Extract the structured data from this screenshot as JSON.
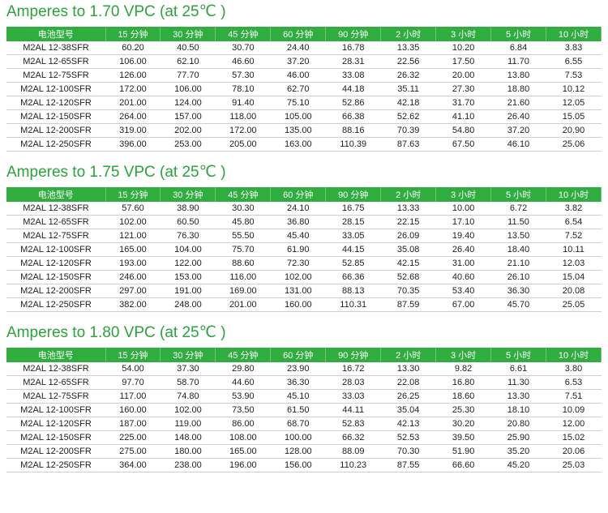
{
  "columns": [
    "电池型号",
    "15 分钟",
    "30 分钟",
    "45 分钟",
    "60 分钟",
    "90 分钟",
    "2 小时",
    "3 小时",
    "5 小时",
    "10 小时"
  ],
  "sections": [
    {
      "title": "Amperes to 1.70 VPC (at 25℃ )",
      "rows": [
        [
          "M2AL 12-38SFR",
          "60.20",
          "40.50",
          "30.70",
          "24.40",
          "16.78",
          "13.35",
          "10.20",
          "6.84",
          "3.83"
        ],
        [
          "M2AL 12-65SFR",
          "106.00",
          "62.10",
          "46.60",
          "37.20",
          "28.31",
          "22.56",
          "17.50",
          "11.70",
          "6.55"
        ],
        [
          "M2AL 12-75SFR",
          "126.00",
          "77.70",
          "57.30",
          "46.00",
          "33.08",
          "26.32",
          "20.00",
          "13.80",
          "7.53"
        ],
        [
          "M2AL 12-100SFR",
          "172.00",
          "106.00",
          "78.10",
          "62.70",
          "44.18",
          "35.11",
          "27.30",
          "18.80",
          "10.12"
        ],
        [
          "M2AL 12-120SFR",
          "201.00",
          "124.00",
          "91.40",
          "75.10",
          "52.86",
          "42.18",
          "31.70",
          "21.60",
          "12.05"
        ],
        [
          "M2AL 12-150SFR",
          "264.00",
          "157.00",
          "118.00",
          "105.00",
          "66.38",
          "52.62",
          "41.10",
          "26.40",
          "15.05"
        ],
        [
          "M2AL 12-200SFR",
          "319.00",
          "202.00",
          "172.00",
          "135.00",
          "88.16",
          "70.39",
          "54.80",
          "37.20",
          "20.90"
        ],
        [
          "M2AL 12-250SFR",
          "396.00",
          "253.00",
          "205.00",
          "163.00",
          "110.39",
          "87.63",
          "67.50",
          "46.10",
          "25.06"
        ]
      ]
    },
    {
      "title": "Amperes to 1.75 VPC (at 25℃ )",
      "rows": [
        [
          "M2AL 12-38SFR",
          "57.60",
          "38.90",
          "30.30",
          "24.10",
          "16.75",
          "13.33",
          "10.00",
          "6.72",
          "3.82"
        ],
        [
          "M2AL 12-65SFR",
          "102.00",
          "60.50",
          "45.80",
          "36.80",
          "28.15",
          "22.15",
          "17.10",
          "11.50",
          "6.54"
        ],
        [
          "M2AL 12-75SFR",
          "121.00",
          "76.30",
          "55.50",
          "45.40",
          "33.05",
          "26.09",
          "19.40",
          "13.50",
          "7.52"
        ],
        [
          "M2AL 12-100SFR",
          "165.00",
          "104.00",
          "75.70",
          "61.90",
          "44.15",
          "35.08",
          "26.40",
          "18.40",
          "10.11"
        ],
        [
          "M2AL 12-120SFR",
          "193.00",
          "122.00",
          "88.60",
          "72.30",
          "52.85",
          "42.15",
          "31.00",
          "21.10",
          "12.03"
        ],
        [
          "M2AL 12-150SFR",
          "246.00",
          "153.00",
          "116.00",
          "102.00",
          "66.36",
          "52.68",
          "40.60",
          "26.10",
          "15.04"
        ],
        [
          "M2AL 12-200SFR",
          "297.00",
          "191.00",
          "169.00",
          "131.00",
          "88.13",
          "70.35",
          "53.40",
          "36.30",
          "20.08"
        ],
        [
          "M2AL 12-250SFR",
          "382.00",
          "248.00",
          "201.00",
          "160.00",
          "110.31",
          "87.59",
          "67.00",
          "45.70",
          "25.05"
        ]
      ]
    },
    {
      "title": "Amperes to 1.80 VPC (at 25℃ )",
      "rows": [
        [
          "M2AL 12-38SFR",
          "54.00",
          "37.30",
          "29.80",
          "23.90",
          "16.72",
          "13.30",
          "9.82",
          "6.61",
          "3.80"
        ],
        [
          "M2AL 12-65SFR",
          "97.70",
          "58.70",
          "44.60",
          "36.30",
          "28.03",
          "22.08",
          "16.80",
          "11.30",
          "6.53"
        ],
        [
          "M2AL 12-75SFR",
          "117.00",
          "74.80",
          "53.90",
          "45.10",
          "33.03",
          "26.25",
          "18.60",
          "13.30",
          "7.51"
        ],
        [
          "M2AL 12-100SFR",
          "160.00",
          "102.00",
          "73.50",
          "61.50",
          "44.11",
          "35.04",
          "25.30",
          "18.10",
          "10.09"
        ],
        [
          "M2AL 12-120SFR",
          "187.00",
          "119.00",
          "86.00",
          "68.70",
          "52.83",
          "42.13",
          "30.20",
          "20.80",
          "12.00"
        ],
        [
          "M2AL 12-150SFR",
          "225.00",
          "148.00",
          "108.00",
          "100.00",
          "66.32",
          "52.53",
          "39.50",
          "25.90",
          "15.02"
        ],
        [
          "M2AL 12-200SFR",
          "275.00",
          "180.00",
          "165.00",
          "128.00",
          "88.09",
          "70.30",
          "51.90",
          "35.20",
          "20.06"
        ],
        [
          "M2AL 12-250SFR",
          "364.00",
          "238.00",
          "196.00",
          "156.00",
          "110.23",
          "87.55",
          "66.60",
          "45.20",
          "25.03"
        ]
      ]
    }
  ]
}
